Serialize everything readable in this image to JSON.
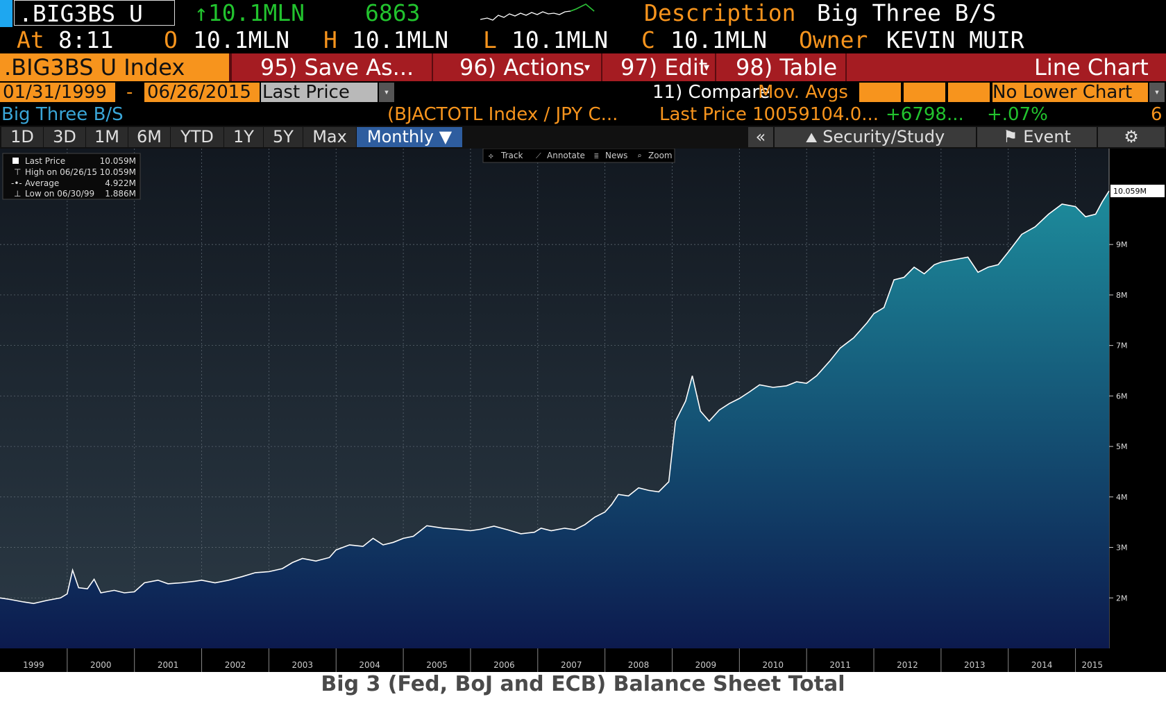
{
  "header": {
    "ticker": ".BIG3BS U",
    "last_value": "↑10.1MLN",
    "count": "6863",
    "description_label": "Description",
    "description_value": "Big Three B/S",
    "at_label": "At",
    "at_time": "8:11",
    "o_label": "O",
    "o_value": "10.1MLN",
    "h_label": "H",
    "h_value": "10.1MLN",
    "l_label": "L",
    "l_value": "10.1MLN",
    "c_label": "C",
    "c_value": "10.1MLN",
    "owner_label": "Owner",
    "owner_value": "KEVIN MUIR"
  },
  "menu": {
    "security": ".BIG3BS U Index",
    "save": "95) Save As...",
    "actions": "96) Actions",
    "edit": "97) Edit",
    "table": "98) Table",
    "chart_type": "Line Chart"
  },
  "range": {
    "start": "01/31/1999",
    "dash": "-",
    "end": "06/26/2015",
    "field": "Last Price",
    "compare": "11) Compare",
    "mov_avgs": "Mov. Avgs",
    "lower_chart": "No Lower Chart"
  },
  "legend_row": {
    "name": "Big Three B/S",
    "ref": "(BJACTOTL Index / JPY C...",
    "last_price": "Last Price 10059104.0...",
    "change": "+6798...",
    "pct": "+.07%",
    "num": "6"
  },
  "toolbar": {
    "periods": [
      "1D",
      "3D",
      "1M",
      "6M",
      "YTD",
      "1Y",
      "5Y",
      "Max"
    ],
    "frequency": "Monthly ▼",
    "collapse": "«",
    "security_study": "Security/Study",
    "event": "Event",
    "track": "Track",
    "annotate": "Annotate",
    "news": "News",
    "zoom": "Zoom"
  },
  "legend_box": {
    "rows": [
      {
        "label": "Last Price",
        "value": "10.059M"
      },
      {
        "label": "High on 06/26/15",
        "value": "10.059M"
      },
      {
        "label": "Average",
        "value": "4.922M"
      },
      {
        "label": "Low on 06/30/99",
        "value": "1.886M"
      }
    ]
  },
  "caption": "Big 3 (Fed, BoJ and ECB) Balance Sheet Total",
  "colors": {
    "area_top": "#1d8c9c",
    "area_bottom": "#0c1a4e",
    "background_top": "#121820",
    "background_bottom": "#2d3c48",
    "line": "#ffffff",
    "accent_orange": "#f7941d",
    "accent_green": "#22c32e",
    "menu_red": "#a51c22"
  },
  "chart_data": {
    "type": "area",
    "xlabel": "",
    "ylabel": "",
    "xlim": [
      1999.0,
      2015.5
    ],
    "ylim": [
      1.0,
      10.9
    ],
    "y_unit": "M",
    "yticks": [
      2,
      3,
      4,
      5,
      6,
      7,
      8,
      9
    ],
    "ytick_labels": [
      "2M",
      "3M",
      "4M",
      "5M",
      "6M",
      "7M",
      "8M",
      "9M"
    ],
    "x_tick_labels": [
      "1999",
      "2000",
      "2001",
      "2002",
      "2003",
      "2004",
      "2005",
      "2006",
      "2007",
      "2008",
      "2009",
      "2010",
      "2011",
      "2012",
      "2013",
      "2014",
      "2015"
    ],
    "last_label": "10.059M",
    "grid": true,
    "series": [
      {
        "name": "Big Three B/S",
        "points": [
          [
            1999.0,
            2.0
          ],
          [
            1999.15,
            1.97
          ],
          [
            1999.35,
            1.92
          ],
          [
            1999.5,
            1.89
          ],
          [
            1999.7,
            1.95
          ],
          [
            1999.9,
            2.0
          ],
          [
            2000.0,
            2.08
          ],
          [
            2000.08,
            2.55
          ],
          [
            2000.17,
            2.2
          ],
          [
            2000.3,
            2.18
          ],
          [
            2000.4,
            2.37
          ],
          [
            2000.5,
            2.1
          ],
          [
            2000.7,
            2.15
          ],
          [
            2000.85,
            2.1
          ],
          [
            2001.0,
            2.12
          ],
          [
            2001.15,
            2.3
          ],
          [
            2001.35,
            2.35
          ],
          [
            2001.5,
            2.28
          ],
          [
            2001.7,
            2.3
          ],
          [
            2001.9,
            2.33
          ],
          [
            2002.0,
            2.35
          ],
          [
            2002.2,
            2.3
          ],
          [
            2002.4,
            2.35
          ],
          [
            2002.6,
            2.42
          ],
          [
            2002.8,
            2.5
          ],
          [
            2003.0,
            2.52
          ],
          [
            2003.2,
            2.58
          ],
          [
            2003.35,
            2.7
          ],
          [
            2003.5,
            2.78
          ],
          [
            2003.7,
            2.73
          ],
          [
            2003.9,
            2.8
          ],
          [
            2004.0,
            2.95
          ],
          [
            2004.2,
            3.05
          ],
          [
            2004.4,
            3.02
          ],
          [
            2004.55,
            3.18
          ],
          [
            2004.7,
            3.05
          ],
          [
            2004.85,
            3.1
          ],
          [
            2005.0,
            3.18
          ],
          [
            2005.15,
            3.22
          ],
          [
            2005.35,
            3.43
          ],
          [
            2005.6,
            3.38
          ],
          [
            2005.8,
            3.36
          ],
          [
            2006.0,
            3.33
          ],
          [
            2006.15,
            3.36
          ],
          [
            2006.35,
            3.42
          ],
          [
            2006.55,
            3.35
          ],
          [
            2006.75,
            3.27
          ],
          [
            2006.95,
            3.3
          ],
          [
            2007.05,
            3.38
          ],
          [
            2007.2,
            3.33
          ],
          [
            2007.4,
            3.38
          ],
          [
            2007.55,
            3.35
          ],
          [
            2007.7,
            3.45
          ],
          [
            2007.85,
            3.6
          ],
          [
            2008.0,
            3.7
          ],
          [
            2008.1,
            3.85
          ],
          [
            2008.2,
            4.05
          ],
          [
            2008.35,
            4.02
          ],
          [
            2008.5,
            4.18
          ],
          [
            2008.65,
            4.13
          ],
          [
            2008.8,
            4.1
          ],
          [
            2008.95,
            4.3
          ],
          [
            2009.05,
            5.5
          ],
          [
            2009.2,
            5.9
          ],
          [
            2009.3,
            6.4
          ],
          [
            2009.42,
            5.7
          ],
          [
            2009.55,
            5.5
          ],
          [
            2009.7,
            5.72
          ],
          [
            2009.85,
            5.85
          ],
          [
            2010.0,
            5.95
          ],
          [
            2010.15,
            6.08
          ],
          [
            2010.3,
            6.22
          ],
          [
            2010.5,
            6.17
          ],
          [
            2010.7,
            6.2
          ],
          [
            2010.85,
            6.28
          ],
          [
            2011.0,
            6.25
          ],
          [
            2011.15,
            6.4
          ],
          [
            2011.35,
            6.7
          ],
          [
            2011.5,
            6.95
          ],
          [
            2011.7,
            7.15
          ],
          [
            2011.9,
            7.45
          ],
          [
            2012.0,
            7.63
          ],
          [
            2012.15,
            7.75
          ],
          [
            2012.3,
            8.3
          ],
          [
            2012.45,
            8.35
          ],
          [
            2012.6,
            8.55
          ],
          [
            2012.75,
            8.42
          ],
          [
            2012.9,
            8.6
          ],
          [
            2013.0,
            8.65
          ],
          [
            2013.2,
            8.7
          ],
          [
            2013.4,
            8.75
          ],
          [
            2013.55,
            8.45
          ],
          [
            2013.7,
            8.55
          ],
          [
            2013.85,
            8.6
          ],
          [
            2014.0,
            8.85
          ],
          [
            2014.2,
            9.2
          ],
          [
            2014.4,
            9.35
          ],
          [
            2014.6,
            9.6
          ],
          [
            2014.8,
            9.8
          ],
          [
            2015.0,
            9.75
          ],
          [
            2015.15,
            9.55
          ],
          [
            2015.3,
            9.6
          ],
          [
            2015.4,
            9.85
          ],
          [
            2015.5,
            10.06
          ]
        ]
      }
    ]
  }
}
